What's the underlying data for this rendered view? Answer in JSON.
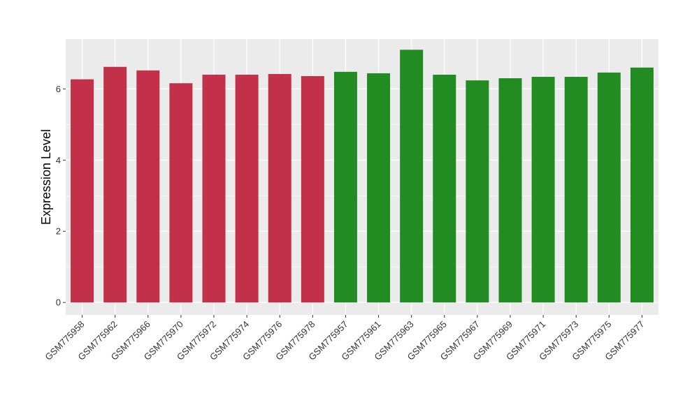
{
  "chart_data": {
    "type": "bar",
    "title": "",
    "xlabel": "",
    "ylabel": "Expression Level",
    "ylim": [
      -0.35,
      7.4
    ],
    "yticks": [
      0,
      2,
      4,
      6
    ],
    "grid": true,
    "legend": "none",
    "panel_background": "#EBEBEB",
    "grid_color": "#FFFFFF",
    "categories": [
      "GSM775958",
      "GSM775962",
      "GSM775966",
      "GSM775970",
      "GSM775972",
      "GSM775974",
      "GSM775976",
      "GSM775978",
      "GSM775957",
      "GSM775961",
      "GSM775963",
      "GSM775965",
      "GSM775967",
      "GSM775969",
      "GSM775971",
      "GSM775973",
      "GSM775975",
      "GSM775977"
    ],
    "values": [
      6.27,
      6.62,
      6.52,
      6.16,
      6.4,
      6.4,
      6.42,
      6.36,
      6.48,
      6.44,
      7.1,
      6.4,
      6.24,
      6.3,
      6.34,
      6.34,
      6.46,
      6.6
    ],
    "colors": [
      "#C3304A",
      "#C3304A",
      "#C3304A",
      "#C3304A",
      "#C3304A",
      "#C3304A",
      "#C3304A",
      "#C3304A",
      "#228B22",
      "#228B22",
      "#228B22",
      "#228B22",
      "#228B22",
      "#228B22",
      "#228B22",
      "#228B22",
      "#228B22",
      "#228B22"
    ]
  }
}
